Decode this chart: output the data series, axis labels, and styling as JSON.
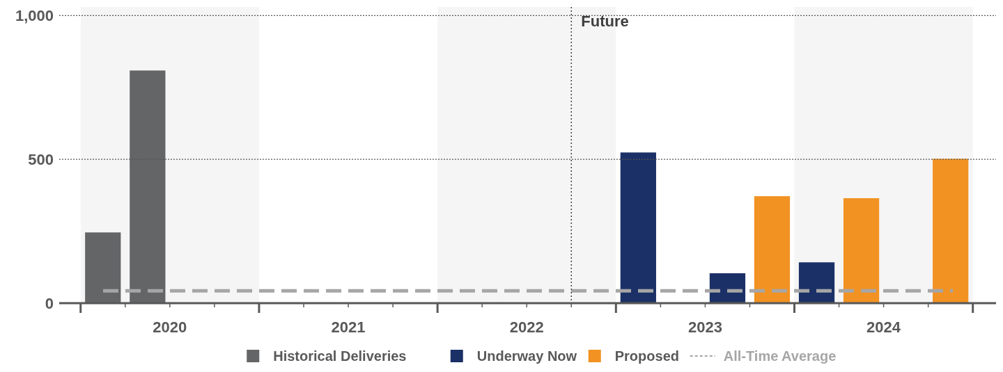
{
  "chart_data": {
    "type": "bar",
    "series": [
      {
        "name": "Historical Deliveries",
        "color": "#646567",
        "x": [
          2020.125,
          2020.375
        ],
        "values": [
          246,
          809
        ]
      },
      {
        "name": "Underway Now",
        "color": "#1b3066",
        "x": [
          2023.125,
          2023.625,
          2024.125
        ],
        "values": [
          524,
          104,
          142
        ]
      },
      {
        "name": "Proposed",
        "color": "#f29222",
        "x": [
          2023.875,
          2024.375,
          2024.875
        ],
        "values": [
          372,
          365,
          502
        ]
      }
    ],
    "xlim": [
      2019.88,
      2025.13
    ],
    "xticks": [
      {
        "value": 2020,
        "label": null
      },
      {
        "value": 2020.25,
        "label": null
      },
      {
        "value": 2020.5,
        "label": "2020"
      },
      {
        "value": 2020.75,
        "label": null
      },
      {
        "value": 2021,
        "label": null
      },
      {
        "value": 2021.25,
        "label": null
      },
      {
        "value": 2021.5,
        "label": "2021"
      },
      {
        "value": 2021.75,
        "label": null
      },
      {
        "value": 2022,
        "label": null
      },
      {
        "value": 2022.25,
        "label": null
      },
      {
        "value": 2022.5,
        "label": "2022"
      },
      {
        "value": 2022.75,
        "label": null
      },
      {
        "value": 2023,
        "label": null
      },
      {
        "value": 2023.25,
        "label": null
      },
      {
        "value": 2023.5,
        "label": "2023"
      },
      {
        "value": 2023.75,
        "label": null
      },
      {
        "value": 2024,
        "label": null
      },
      {
        "value": 2024.25,
        "label": null
      },
      {
        "value": 2024.5,
        "label": "2024"
      },
      {
        "value": 2024.75,
        "label": null
      },
      {
        "value": 2025,
        "label": null
      }
    ],
    "ylim": [
      0,
      1030
    ],
    "yticks": [
      0,
      500,
      {
        "value": 1000,
        "label": "1,000"
      }
    ],
    "grid": "y",
    "legend": "bottom",
    "ref_lines": [
      {
        "axis": "y",
        "value": 43,
        "label": "All-Time Average",
        "color": "#a6a6a6",
        "line_style": "dashed"
      },
      {
        "axis": "x",
        "value": 2022.75,
        "label": "Future",
        "color": "#404040",
        "line_style": "dotted"
      }
    ],
    "bands": [
      {
        "axis": "x",
        "from": 2020,
        "to": 2021,
        "color": "#f5f5f5"
      },
      {
        "axis": "x",
        "from": 2022,
        "to": 2023,
        "color": "#f5f5f5"
      },
      {
        "axis": "x",
        "from": 2024,
        "to": 2025,
        "color": "#f5f5f5"
      }
    ]
  }
}
